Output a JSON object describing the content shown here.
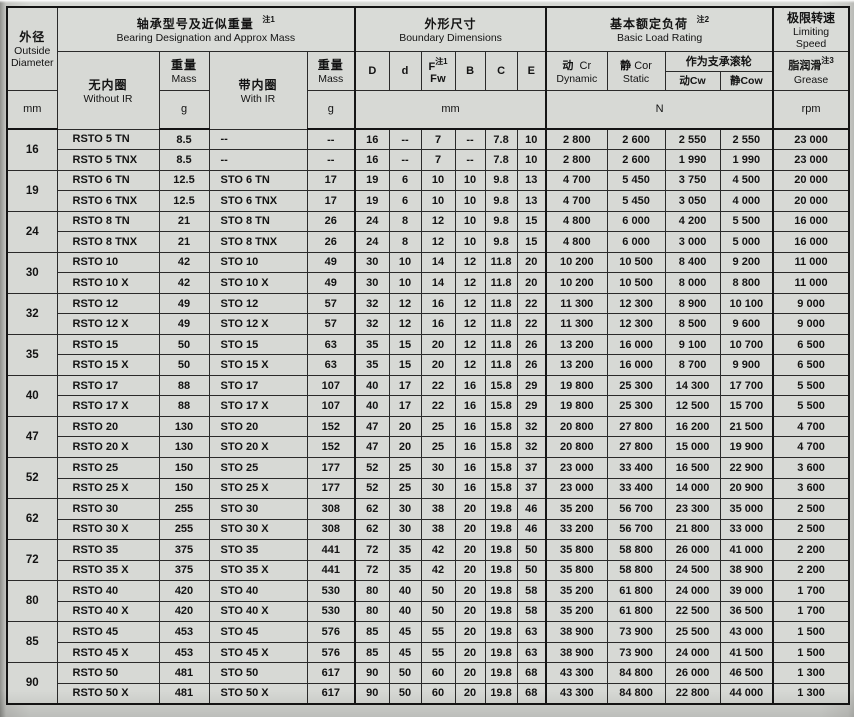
{
  "header": {
    "od": {
      "zh": "外径",
      "en_line1": "Outside",
      "en_line2": "Diameter",
      "unit": "mm"
    },
    "designation": {
      "zh": "轴承型号及近似重量",
      "note": "注1",
      "en": "Bearing Designation and Approx Mass",
      "without_ir_zh": "无内圈",
      "without_ir_en": "Without IR",
      "mass_zh": "重量",
      "mass_en": "Mass",
      "mass_unit": "g",
      "with_ir_zh": "带内圈",
      "with_ir_en": "With IR",
      "mass2_zh": "重量",
      "mass2_en": "Mass",
      "mass2_unit": "g"
    },
    "boundary": {
      "zh": "外形尺寸",
      "en": "Boundary Dimensions",
      "col_D": "D",
      "col_d": "d",
      "col_F": "F",
      "col_F_note": "注1",
      "col_Fw": "Fw",
      "col_B": "B",
      "col_C": "C",
      "col_E": "E",
      "unit": "mm"
    },
    "load": {
      "zh": "基本额定负荷",
      "note": "注2",
      "en": "Basic Load Rating",
      "dynamic_zh": "动",
      "dynamic_sym": "Cr",
      "dynamic_en": "Dynamic",
      "static_zh": "静",
      "static_sym": "Cor",
      "static_en": "Static",
      "roller_zh": "作为支承滚轮",
      "cw": "动Cw",
      "cow": "静Cow",
      "unit": "N"
    },
    "speed": {
      "zh": "极限转速",
      "en_line1": "Limiting",
      "en_line2": "Speed",
      "grease_zh": "脂润滑",
      "grease_note": "注3",
      "grease_en": "Grease",
      "unit": "rpm"
    }
  },
  "table": {
    "columns": [
      "designation-without-ir",
      "mass-without-ir",
      "designation-with-ir",
      "mass-with-ir",
      "dim-D",
      "dim-d",
      "dim-F",
      "dim-B",
      "dim-C",
      "dim-E",
      "load-dynamic-cr",
      "load-static-cor",
      "load-dynamic-cw",
      "load-static-cow",
      "limiting-speed-grease"
    ],
    "groups": [
      {
        "od": "16",
        "rows": [
          [
            "RSTO 5 TN",
            "8.5",
            "--",
            "--",
            "16",
            "--",
            "7",
            "--",
            "7.8",
            "10",
            "2 800",
            "2 600",
            "2 550",
            "2 550",
            "23 000"
          ],
          [
            "RSTO 5 TNX",
            "8.5",
            "--",
            "--",
            "16",
            "--",
            "7",
            "--",
            "7.8",
            "10",
            "2 800",
            "2 600",
            "1 990",
            "1 990",
            "23 000"
          ]
        ]
      },
      {
        "od": "19",
        "rows": [
          [
            "RSTO 6 TN",
            "12.5",
            "STO 6 TN",
            "17",
            "19",
            "6",
            "10",
            "10",
            "9.8",
            "13",
            "4 700",
            "5 450",
            "3 750",
            "4 500",
            "20 000"
          ],
          [
            "RSTO 6 TNX",
            "12.5",
            "STO 6 TNX",
            "17",
            "19",
            "6",
            "10",
            "10",
            "9.8",
            "13",
            "4 700",
            "5 450",
            "3 050",
            "4 000",
            "20 000"
          ]
        ]
      },
      {
        "od": "24",
        "rows": [
          [
            "RSTO 8 TN",
            "21",
            "STO 8 TN",
            "26",
            "24",
            "8",
            "12",
            "10",
            "9.8",
            "15",
            "4 800",
            "6 000",
            "4 200",
            "5 500",
            "16 000"
          ],
          [
            "RSTO 8 TNX",
            "21",
            "STO 8 TNX",
            "26",
            "24",
            "8",
            "12",
            "10",
            "9.8",
            "15",
            "4 800",
            "6 000",
            "3 000",
            "5 000",
            "16 000"
          ]
        ]
      },
      {
        "od": "30",
        "rows": [
          [
            "RSTO 10",
            "42",
            "STO 10",
            "49",
            "30",
            "10",
            "14",
            "12",
            "11.8",
            "20",
            "10 200",
            "10 500",
            "8 400",
            "9 200",
            "11 000"
          ],
          [
            "RSTO 10 X",
            "42",
            "STO 10 X",
            "49",
            "30",
            "10",
            "14",
            "12",
            "11.8",
            "20",
            "10 200",
            "10 500",
            "8 000",
            "8 800",
            "11 000"
          ]
        ]
      },
      {
        "od": "32",
        "rows": [
          [
            "RSTO 12",
            "49",
            "STO 12",
            "57",
            "32",
            "12",
            "16",
            "12",
            "11.8",
            "22",
            "11 300",
            "12 300",
            "8 900",
            "10 100",
            "9 000"
          ],
          [
            "RSTO 12 X",
            "49",
            "STO 12 X",
            "57",
            "32",
            "12",
            "16",
            "12",
            "11.8",
            "22",
            "11 300",
            "12 300",
            "8 500",
            "9 600",
            "9 000"
          ]
        ]
      },
      {
        "od": "35",
        "rows": [
          [
            "RSTO 15",
            "50",
            "STO 15",
            "63",
            "35",
            "15",
            "20",
            "12",
            "11.8",
            "26",
            "13 200",
            "16 000",
            "9 100",
            "10 700",
            "6 500"
          ],
          [
            "RSTO 15 X",
            "50",
            "STO 15 X",
            "63",
            "35",
            "15",
            "20",
            "12",
            "11.8",
            "26",
            "13 200",
            "16 000",
            "8 700",
            "9 900",
            "6 500"
          ]
        ]
      },
      {
        "od": "40",
        "rows": [
          [
            "RSTO 17",
            "88",
            "STO 17",
            "107",
            "40",
            "17",
            "22",
            "16",
            "15.8",
            "29",
            "19 800",
            "25 300",
            "14 300",
            "17 700",
            "5 500"
          ],
          [
            "RSTO 17 X",
            "88",
            "STO 17 X",
            "107",
            "40",
            "17",
            "22",
            "16",
            "15.8",
            "29",
            "19 800",
            "25 300",
            "12 500",
            "15 700",
            "5 500"
          ]
        ]
      },
      {
        "od": "47",
        "rows": [
          [
            "RSTO 20",
            "130",
            "STO 20",
            "152",
            "47",
            "20",
            "25",
            "16",
            "15.8",
            "32",
            "20 800",
            "27 800",
            "16 200",
            "21 500",
            "4 700"
          ],
          [
            "RSTO 20 X",
            "130",
            "STO 20 X",
            "152",
            "47",
            "20",
            "25",
            "16",
            "15.8",
            "32",
            "20 800",
            "27 800",
            "15 000",
            "19 900",
            "4 700"
          ]
        ]
      },
      {
        "od": "52",
        "rows": [
          [
            "RSTO 25",
            "150",
            "STO 25",
            "177",
            "52",
            "25",
            "30",
            "16",
            "15.8",
            "37",
            "23 000",
            "33 400",
            "16 500",
            "22 900",
            "3 600"
          ],
          [
            "RSTO 25 X",
            "150",
            "STO 25 X",
            "177",
            "52",
            "25",
            "30",
            "16",
            "15.8",
            "37",
            "23 000",
            "33 400",
            "14 000",
            "20 900",
            "3 600"
          ]
        ]
      },
      {
        "od": "62",
        "rows": [
          [
            "RSTO 30",
            "255",
            "STO 30",
            "308",
            "62",
            "30",
            "38",
            "20",
            "19.8",
            "46",
            "35 200",
            "56 700",
            "23 300",
            "35 000",
            "2 500"
          ],
          [
            "RSTO 30 X",
            "255",
            "STO 30 X",
            "308",
            "62",
            "30",
            "38",
            "20",
            "19.8",
            "46",
            "33 200",
            "56 700",
            "21 800",
            "33 000",
            "2 500"
          ]
        ]
      },
      {
        "od": "72",
        "rows": [
          [
            "RSTO 35",
            "375",
            "STO 35",
            "441",
            "72",
            "35",
            "42",
            "20",
            "19.8",
            "50",
            "35 800",
            "58 800",
            "26 000",
            "41 000",
            "2 200"
          ],
          [
            "RSTO 35 X",
            "375",
            "STO 35 X",
            "441",
            "72",
            "35",
            "42",
            "20",
            "19.8",
            "50",
            "35 800",
            "58 800",
            "24 500",
            "38 900",
            "2 200"
          ]
        ]
      },
      {
        "od": "80",
        "rows": [
          [
            "RSTO 40",
            "420",
            "STO 40",
            "530",
            "80",
            "40",
            "50",
            "20",
            "19.8",
            "58",
            "35 200",
            "61 800",
            "24 000",
            "39 000",
            "1 700"
          ],
          [
            "RSTO 40 X",
            "420",
            "STO 40 X",
            "530",
            "80",
            "40",
            "50",
            "20",
            "19.8",
            "58",
            "35 200",
            "61 800",
            "22 500",
            "36 500",
            "1 700"
          ]
        ]
      },
      {
        "od": "85",
        "rows": [
          [
            "RSTO 45",
            "453",
            "STO 45",
            "576",
            "85",
            "45",
            "55",
            "20",
            "19.8",
            "63",
            "38 900",
            "73 900",
            "25 500",
            "43 000",
            "1 500"
          ],
          [
            "RSTO 45 X",
            "453",
            "STO 45 X",
            "576",
            "85",
            "45",
            "55",
            "20",
            "19.8",
            "63",
            "38 900",
            "73 900",
            "24 000",
            "41 500",
            "1 500"
          ]
        ]
      },
      {
        "od": "90",
        "rows": [
          [
            "RSTO 50",
            "481",
            "STO 50",
            "617",
            "90",
            "50",
            "60",
            "20",
            "19.8",
            "68",
            "43 300",
            "84 800",
            "26 000",
            "46 500",
            "1 300"
          ],
          [
            "RSTO 50 X",
            "481",
            "STO 50 X",
            "617",
            "90",
            "50",
            "60",
            "20",
            "19.8",
            "68",
            "43 300",
            "84 800",
            "22 800",
            "44 000",
            "1 300"
          ]
        ]
      }
    ]
  }
}
